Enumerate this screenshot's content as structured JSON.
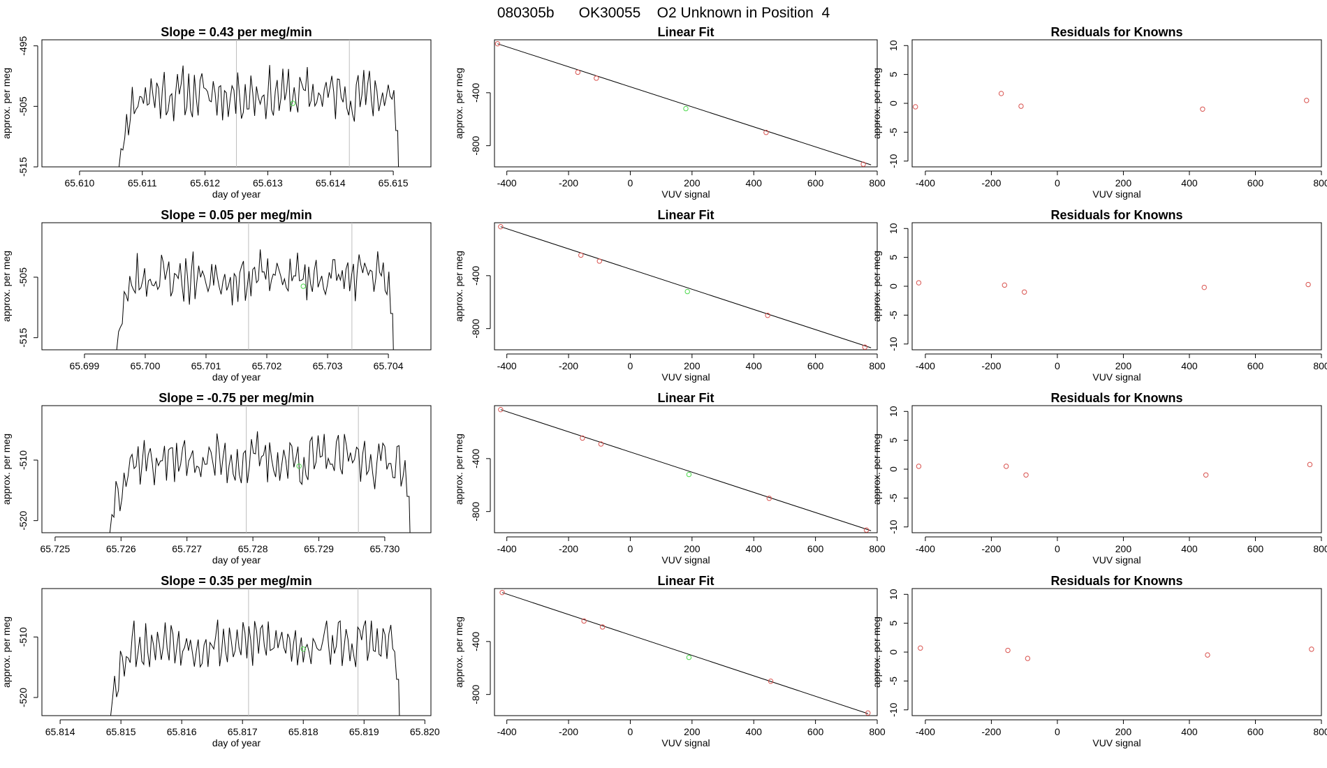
{
  "page": {
    "title": "080305b      OK30055    O2 Unknown in Position  4"
  },
  "colors": {
    "known_point": "#d9534f",
    "unknown_point": "#4cd94c",
    "series": "#000000",
    "marker_line": "#bebebe"
  },
  "chart_data": [
    {
      "type": "line",
      "title": "Slope =  0.43  per meg/min",
      "xlabel": "day of year",
      "ylabel": "approx. per meg",
      "xlim": [
        65.6094,
        65.6156
      ],
      "ylim": [
        -515,
        -494
      ],
      "xticks": [
        "65.610",
        "65.611",
        "65.612",
        "65.613",
        "65.614",
        "65.615"
      ],
      "yticks": [
        "-495",
        "-505",
        "-515"
      ],
      "marker_lines_x": [
        65.6125,
        65.6143
      ],
      "data_start": 65.6106,
      "data_end": 65.6151,
      "mean_value": -503,
      "seed": 11,
      "unknown_point": {
        "x": 65.6134,
        "y": -504.5
      }
    },
    {
      "type": "scatter",
      "title": "Linear Fit",
      "xlabel": "VUV signal",
      "ylabel": "approx. per meg",
      "xlim": [
        -440,
        800
      ],
      "ylim": [
        -960,
        0
      ],
      "xticks": [
        "-400",
        "-200",
        "0",
        "200",
        "400",
        "600",
        "800"
      ],
      "yticks": [
        "-400",
        "-800"
      ],
      "fit_line": {
        "x": [
          -430,
          780
        ],
        "y": [
          -30,
          -945
        ]
      },
      "known_points": {
        "x": [
          -430,
          -170,
          -110,
          440,
          755
        ],
        "y": [
          -30,
          -245,
          -290,
          -700,
          -940
        ]
      },
      "unknown_point": {
        "x": 180,
        "y": -520
      }
    },
    {
      "type": "scatter",
      "title": "Residuals for Knowns",
      "xlabel": "VUV signal",
      "ylabel": "approx. per meg",
      "xlim": [
        -440,
        800
      ],
      "ylim": [
        -11,
        11
      ],
      "xticks": [
        "-400",
        "-200",
        "0",
        "200",
        "400",
        "600",
        "800"
      ],
      "yticks": [
        "10",
        "5",
        "0",
        "-5",
        "-10"
      ],
      "known_points": {
        "x": [
          -430,
          -170,
          -110,
          440,
          755
        ],
        "y": [
          -0.6,
          1.7,
          -0.5,
          -1.0,
          0.5
        ]
      }
    },
    {
      "type": "line",
      "title": "Slope =  0.05  per meg/min",
      "xlabel": "day of year",
      "ylabel": "approx. per meg",
      "xlim": [
        65.6983,
        65.7047
      ],
      "ylim": [
        -517,
        -496
      ],
      "xticks": [
        "65.699",
        "65.700",
        "65.701",
        "65.702",
        "65.703",
        "65.704"
      ],
      "yticks": [
        "-505",
        "-515"
      ],
      "marker_lines_x": [
        65.7017,
        65.7034
      ],
      "data_start": 65.6995,
      "data_end": 65.7041,
      "mean_value": -505,
      "seed": 23,
      "unknown_point": {
        "x": 65.7026,
        "y": -506.5
      }
    },
    {
      "type": "scatter",
      "title": "Linear Fit",
      "xlabel": "VUV signal",
      "ylabel": "approx. per meg",
      "xlim": [
        -440,
        800
      ],
      "ylim": [
        -960,
        0
      ],
      "xticks": [
        "-400",
        "-200",
        "0",
        "200",
        "400",
        "600",
        "800"
      ],
      "yticks": [
        "-400",
        "-800"
      ],
      "fit_line": {
        "x": [
          -420,
          780
        ],
        "y": [
          -30,
          -945
        ]
      },
      "known_points": {
        "x": [
          -420,
          -160,
          -100,
          445,
          760
        ],
        "y": [
          -30,
          -245,
          -290,
          -700,
          -940
        ]
      },
      "unknown_point": {
        "x": 185,
        "y": -520
      }
    },
    {
      "type": "scatter",
      "title": "Residuals for Knowns",
      "xlabel": "VUV signal",
      "ylabel": "approx. per meg",
      "xlim": [
        -440,
        800
      ],
      "ylim": [
        -11,
        11
      ],
      "xticks": [
        "-400",
        "-200",
        "0",
        "200",
        "400",
        "600",
        "800"
      ],
      "yticks": [
        "10",
        "5",
        "0",
        "-5",
        "-10"
      ],
      "known_points": {
        "x": [
          -420,
          -160,
          -100,
          445,
          760
        ],
        "y": [
          0.6,
          0.2,
          -1.0,
          -0.2,
          0.3
        ]
      }
    },
    {
      "type": "line",
      "title": "Slope =  -0.75  per meg/min",
      "xlabel": "day of year",
      "ylabel": "approx. per meg",
      "xlim": [
        65.7248,
        65.7307
      ],
      "ylim": [
        -522,
        -501
      ],
      "xticks": [
        "65.725",
        "65.726",
        "65.727",
        "65.728",
        "65.729",
        "65.730"
      ],
      "yticks": [
        "-510",
        "-520"
      ],
      "marker_lines_x": [
        65.7279,
        65.7296
      ],
      "data_start": 65.7258,
      "data_end": 65.7304,
      "mean_value": -510,
      "seed": 37,
      "unknown_point": {
        "x": 65.7287,
        "y": -511
      }
    },
    {
      "type": "scatter",
      "title": "Linear Fit",
      "xlabel": "VUV signal",
      "ylabel": "approx. per meg",
      "xlim": [
        -440,
        800
      ],
      "ylim": [
        -960,
        0
      ],
      "xticks": [
        "-400",
        "-200",
        "0",
        "200",
        "400",
        "600",
        "800"
      ],
      "yticks": [
        "-400",
        "-800"
      ],
      "fit_line": {
        "x": [
          -420,
          780
        ],
        "y": [
          -30,
          -945
        ]
      },
      "known_points": {
        "x": [
          -420,
          -155,
          -95,
          450,
          765
        ],
        "y": [
          -30,
          -245,
          -290,
          -700,
          -940
        ]
      },
      "unknown_point": {
        "x": 190,
        "y": -520
      }
    },
    {
      "type": "scatter",
      "title": "Residuals for Knowns",
      "xlabel": "VUV signal",
      "ylabel": "approx. per meg",
      "xlim": [
        -440,
        800
      ],
      "ylim": [
        -11,
        11
      ],
      "xticks": [
        "-400",
        "-200",
        "0",
        "200",
        "400",
        "600",
        "800"
      ],
      "yticks": [
        "10",
        "5",
        "0",
        "-5",
        "-10"
      ],
      "known_points": {
        "x": [
          -420,
          -155,
          -95,
          450,
          765
        ],
        "y": [
          0.5,
          0.5,
          -1.0,
          -1.0,
          0.8
        ]
      }
    },
    {
      "type": "line",
      "title": "Slope =  0.35  per meg/min",
      "xlabel": "day of year",
      "ylabel": "approx. per meg",
      "xlim": [
        65.8137,
        65.8201
      ],
      "ylim": [
        -523,
        -502
      ],
      "xticks": [
        "65.814",
        "65.815",
        "65.816",
        "65.817",
        "65.818",
        "65.819",
        "65.820"
      ],
      "yticks": [
        "-510",
        "-520"
      ],
      "marker_lines_x": [
        65.8171,
        65.8189
      ],
      "data_start": 65.8148,
      "data_end": 65.8196,
      "mean_value": -511,
      "seed": 53,
      "unknown_point": {
        "x": 65.818,
        "y": -512
      }
    },
    {
      "type": "scatter",
      "title": "Linear Fit",
      "xlabel": "VUV signal",
      "ylabel": "approx. per meg",
      "xlim": [
        -440,
        800
      ],
      "ylim": [
        -960,
        0
      ],
      "xticks": [
        "-400",
        "-200",
        "0",
        "200",
        "400",
        "600",
        "800"
      ],
      "yticks": [
        "-400",
        "-800"
      ],
      "fit_line": {
        "x": [
          -415,
          770
        ],
        "y": [
          -30,
          -945
        ]
      },
      "known_points": {
        "x": [
          -415,
          -150,
          -90,
          455,
          770
        ],
        "y": [
          -30,
          -245,
          -290,
          -700,
          -940
        ]
      },
      "unknown_point": {
        "x": 190,
        "y": -520
      }
    },
    {
      "type": "scatter",
      "title": "Residuals for Knowns",
      "xlabel": "VUV signal",
      "ylabel": "approx. per meg",
      "xlim": [
        -440,
        800
      ],
      "ylim": [
        -11,
        11
      ],
      "xticks": [
        "-400",
        "-200",
        "0",
        "200",
        "400",
        "600",
        "800"
      ],
      "yticks": [
        "10",
        "5",
        "0",
        "-5",
        "-10"
      ],
      "known_points": {
        "x": [
          -415,
          -150,
          -90,
          455,
          770
        ],
        "y": [
          0.7,
          0.3,
          -1.1,
          -0.5,
          0.5
        ]
      }
    }
  ]
}
